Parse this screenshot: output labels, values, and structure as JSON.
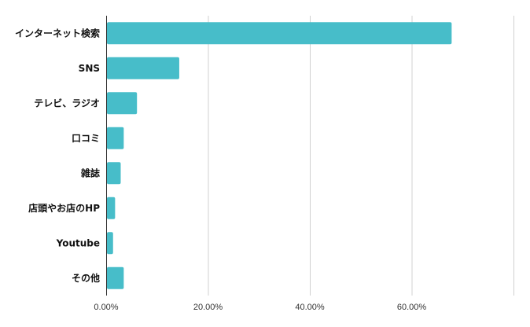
{
  "chart_data": {
    "type": "bar",
    "orientation": "horizontal",
    "categories": [
      "インターネット検索",
      "SNS",
      "テレビ、ラジオ",
      "口コミ",
      "雑誌",
      "店頭やお店のHP",
      "Youtube",
      "その他"
    ],
    "values": [
      67.7,
      14.2,
      5.9,
      3.3,
      2.7,
      1.6,
      1.2,
      3.3
    ],
    "x_ticks": [
      "0.00%",
      "20.00%",
      "40.00%",
      "60.00%"
    ],
    "xlim": [
      0,
      80
    ],
    "grid": "vertical",
    "bar_color": "#47BDC9",
    "title": "",
    "xlabel": "",
    "ylabel": ""
  }
}
